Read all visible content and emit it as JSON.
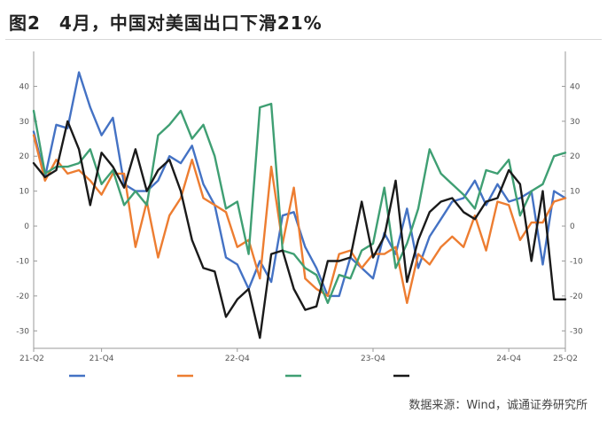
{
  "title": "图2　4月，中国对美国出口下滑21%",
  "source": "数据来源：Wind，诚通证券研究所",
  "chart_data": {
    "type": "line",
    "ylim": [
      -35,
      50
    ],
    "yticks": [
      -30,
      -20,
      -10,
      0,
      10,
      20,
      30,
      40
    ],
    "xticks": [
      {
        "index": 0,
        "label": "21-Q2"
      },
      {
        "index": 6,
        "label": "21-Q4"
      },
      {
        "index": 18,
        "label": "22-Q4"
      },
      {
        "index": 30,
        "label": "23-Q4"
      },
      {
        "index": 42,
        "label": "24-Q4"
      },
      {
        "index": 47,
        "label": "25-Q2"
      }
    ],
    "grid": false,
    "legend_position": "bottom",
    "series": [
      {
        "color": "#4472c4",
        "values": [
          27,
          14,
          29,
          28,
          44,
          34,
          26,
          31,
          12,
          10,
          10,
          13,
          20,
          18,
          23,
          12,
          6,
          -9,
          -11,
          -18,
          -10,
          -16,
          3,
          4,
          -6,
          -12,
          -20,
          -20,
          -9,
          -12,
          -15,
          -2,
          -8,
          5,
          -12,
          -3,
          2,
          7,
          8,
          13,
          6,
          12,
          7,
          8,
          10,
          -11,
          10,
          8
        ]
      },
      {
        "color": "#ed7d31",
        "values": [
          26,
          13,
          19,
          15,
          16,
          13,
          9,
          15,
          15,
          -6,
          7,
          -9,
          3,
          8,
          19,
          8,
          6,
          4,
          -6,
          -4,
          -15,
          17,
          -5,
          11,
          -15,
          -18,
          -20,
          -8,
          -7,
          -12,
          -8,
          -8,
          -6,
          -22,
          -8,
          -11,
          -6,
          -3,
          -6,
          3,
          -7,
          7,
          6,
          -4,
          1,
          1,
          7,
          8
        ]
      },
      {
        "color": "#3f9f73",
        "values": [
          33,
          15,
          17,
          17,
          18,
          22,
          12,
          16,
          6,
          10,
          6,
          26,
          29,
          33,
          25,
          29,
          20,
          5,
          7,
          -8,
          34,
          35,
          -7,
          -8,
          -12,
          -14,
          -22,
          -14,
          -15,
          -7,
          -5,
          11,
          -12,
          -5,
          5,
          22,
          15,
          12,
          9,
          5,
          16,
          15,
          19,
          3,
          10,
          12,
          20,
          21
        ]
      },
      {
        "color": "#1a1a1a",
        "values": [
          18,
          14,
          16,
          30,
          22,
          6,
          21,
          17,
          11,
          22,
          10,
          16,
          19,
          10,
          -4,
          -12,
          -13,
          -26,
          -21,
          -18,
          -32,
          -8,
          -7,
          -18,
          -24,
          -23,
          -10,
          -10,
          -9,
          7,
          -9,
          -3,
          13,
          -16,
          -4,
          4,
          7,
          8,
          4,
          2,
          7,
          8,
          16,
          12,
          -10,
          10,
          -21,
          -21
        ]
      }
    ]
  }
}
